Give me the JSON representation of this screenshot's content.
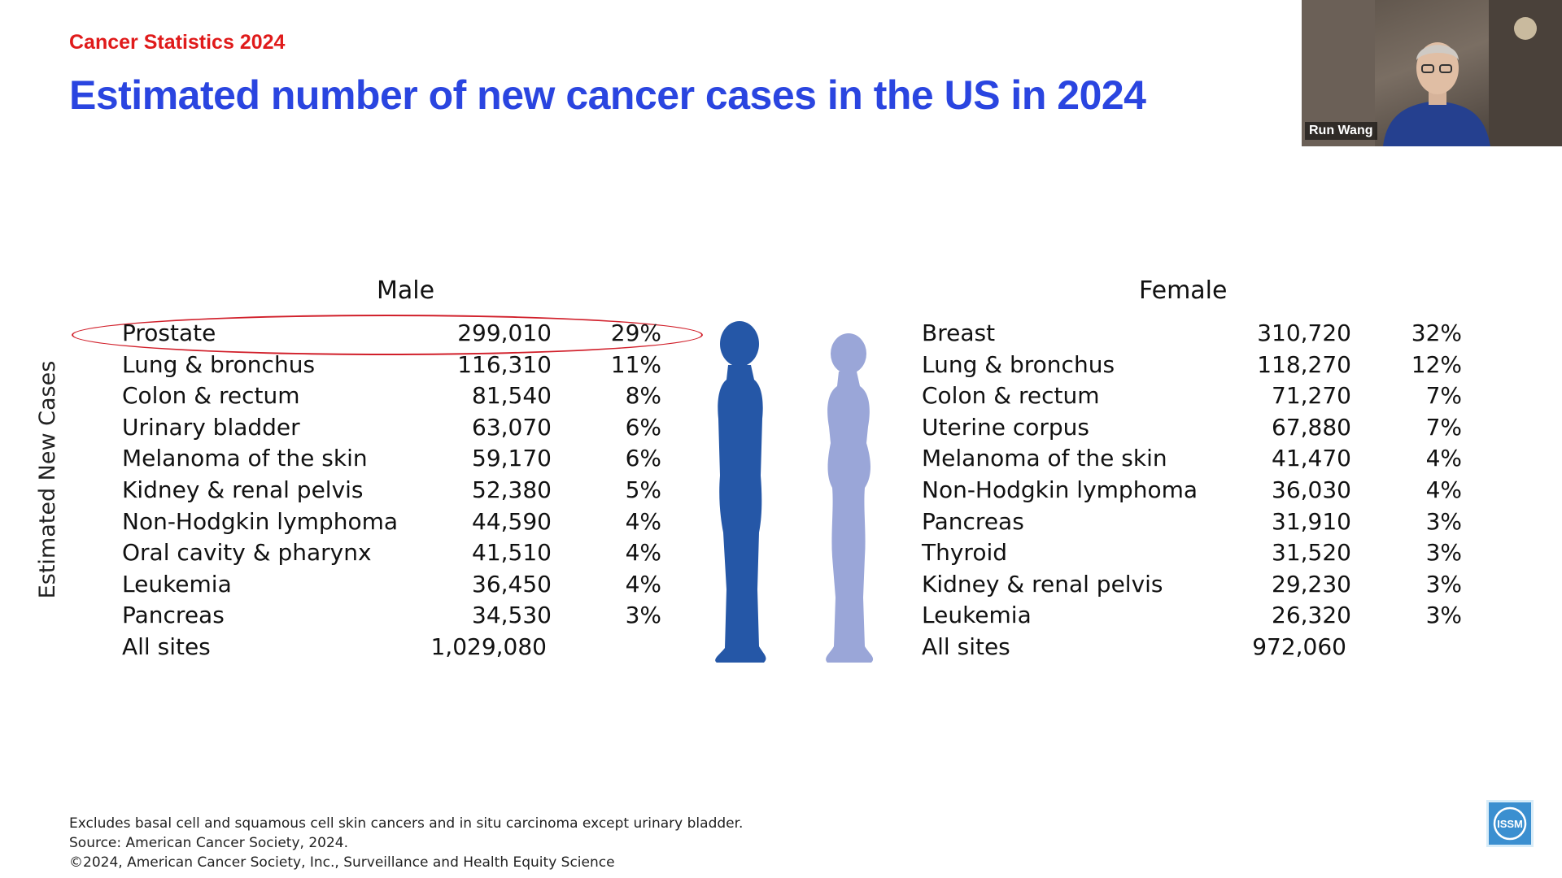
{
  "slide": {
    "eyebrow": "Cancer Statistics 2024",
    "title": "Estimated number of new cancer cases in the US in 2024",
    "y_axis_label": "Estimated New Cases"
  },
  "male": {
    "heading": "Male",
    "rows": [
      {
        "site": "Prostate",
        "cases": "299,010",
        "pct": "29%"
      },
      {
        "site": "Lung & bronchus",
        "cases": "116,310",
        "pct": "11%"
      },
      {
        "site": "Colon & rectum",
        "cases": "81,540",
        "pct": "8%"
      },
      {
        "site": "Urinary bladder",
        "cases": "63,070",
        "pct": "6%"
      },
      {
        "site": "Melanoma of the skin",
        "cases": "59,170",
        "pct": "6%"
      },
      {
        "site": "Kidney & renal pelvis",
        "cases": "52,380",
        "pct": "5%"
      },
      {
        "site": "Non-Hodgkin lymphoma",
        "cases": "44,590",
        "pct": "4%"
      },
      {
        "site": "Oral cavity & pharynx",
        "cases": "41,510",
        "pct": "4%"
      },
      {
        "site": "Leukemia",
        "cases": "36,450",
        "pct": "4%"
      },
      {
        "site": "Pancreas",
        "cases": "34,530",
        "pct": "3%"
      }
    ],
    "total": {
      "site": "All sites",
      "cases": "1,029,080"
    }
  },
  "female": {
    "heading": "Female",
    "rows": [
      {
        "site": "Breast",
        "cases": "310,720",
        "pct": "32%"
      },
      {
        "site": "Lung & bronchus",
        "cases": "118,270",
        "pct": "12%"
      },
      {
        "site": "Colon & rectum",
        "cases": "71,270",
        "pct": "7%"
      },
      {
        "site": "Uterine corpus",
        "cases": "67,880",
        "pct": "7%"
      },
      {
        "site": "Melanoma of the skin",
        "cases": "41,470",
        "pct": "4%"
      },
      {
        "site": "Non-Hodgkin lymphoma",
        "cases": "36,030",
        "pct": "4%"
      },
      {
        "site": "Pancreas",
        "cases": "31,910",
        "pct": "3%"
      },
      {
        "site": "Thyroid",
        "cases": "31,520",
        "pct": "3%"
      },
      {
        "site": "Kidney & renal pelvis",
        "cases": "29,230",
        "pct": "3%"
      },
      {
        "site": "Leukemia",
        "cases": "26,320",
        "pct": "3%"
      }
    ],
    "total": {
      "site": "All sites",
      "cases": "972,060"
    }
  },
  "footnotes": [
    "Excludes basal cell and squamous cell skin cancers and in situ carcinoma except urinary bladder.",
    "Source: American Cancer Society, 2024.",
    "©2024, American Cancer Society, Inc., Surveillance  and Health Equity Science"
  ],
  "webcam": {
    "participant_name": "Run Wang"
  },
  "logo": {
    "text": "ISSM"
  },
  "colors": {
    "eyebrow": "#e01b1b",
    "title": "#2a45e0",
    "male_figure": "#2557a7",
    "female_figure": "#9aa6d8",
    "highlight_ellipse": "#d11f2a"
  }
}
